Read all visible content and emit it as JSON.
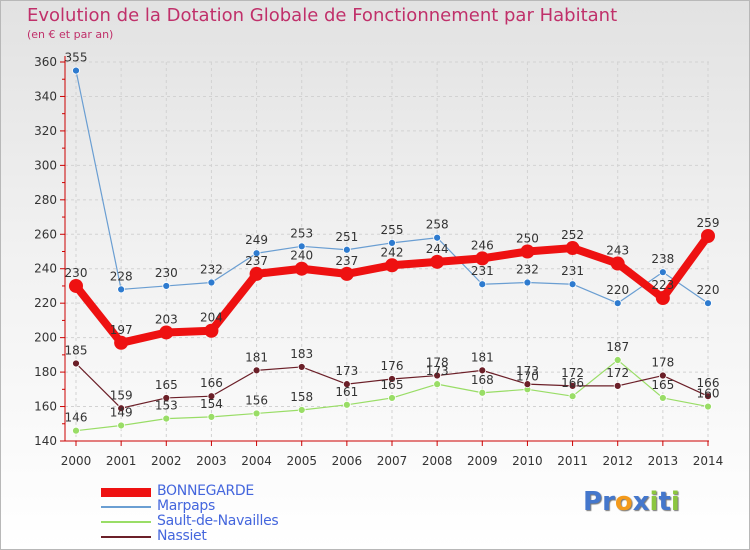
{
  "title": "Evolution de la Dotation Globale de Fonctionnement par Habitant",
  "subtitle": "(en € et par an)",
  "logo": {
    "text": "Proxiti",
    "colors": [
      "#4477cc",
      "#4477cc",
      "#f39a1c",
      "#4477cc",
      "#8cc63f",
      "#4477cc",
      "#8cc63f"
    ]
  },
  "chart_data": {
    "type": "line",
    "title": "Evolution de la Dotation Globale de Fonctionnement par Habitant",
    "subtitle": "(en € et par an)",
    "x": [
      "2000",
      "2001",
      "2002",
      "2003",
      "2004",
      "2005",
      "2006",
      "2007",
      "2008",
      "2009",
      "2010",
      "2011",
      "2012",
      "2013",
      "2014"
    ],
    "ylim": [
      140,
      360
    ],
    "yticks": [
      140,
      160,
      180,
      200,
      220,
      240,
      260,
      280,
      300,
      320,
      340,
      360
    ],
    "grid": true,
    "legend_position": "bottom-left",
    "series": [
      {
        "name": "Sault-de-Navailles",
        "color": "#99dd66",
        "point_color": "#99dd66",
        "width": 1.2,
        "values": [
          146,
          149,
          153,
          154,
          156,
          158,
          161,
          165,
          173,
          168,
          170,
          166,
          187,
          165,
          160
        ]
      },
      {
        "name": "Nassiet",
        "color": "#6b1f28",
        "point_color": "#6b1f28",
        "width": 1.2,
        "values": [
          185,
          159,
          165,
          166,
          181,
          183,
          173,
          176,
          178,
          181,
          173,
          172,
          172,
          178,
          166
        ]
      },
      {
        "name": "Marpaps",
        "color": "#6a9ed2",
        "point_color": "#2e7bcf",
        "width": 1.2,
        "values": [
          355,
          228,
          230,
          232,
          249,
          253,
          251,
          255,
          258,
          231,
          232,
          231,
          220,
          238,
          220
        ]
      },
      {
        "name": "BONNEGARDE",
        "color": "#ee1111",
        "point_color": "#ee1111",
        "width": 8,
        "values": [
          230,
          197,
          203,
          204,
          237,
          240,
          237,
          242,
          244,
          246,
          250,
          252,
          243,
          223,
          259
        ]
      }
    ],
    "legend_order": [
      "BONNEGARDE",
      "Marpaps",
      "Sault-de-Navailles",
      "Nassiet"
    ]
  }
}
